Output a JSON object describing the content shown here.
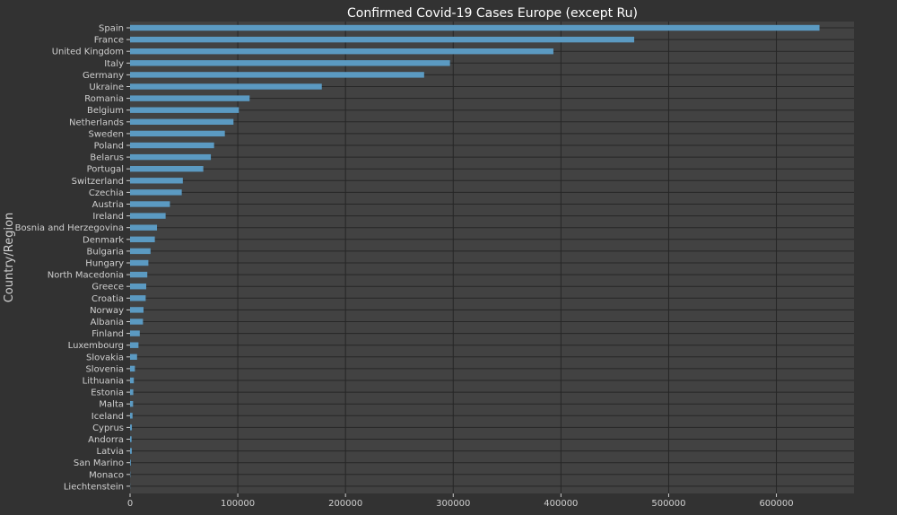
{
  "chart_data": {
    "type": "bar",
    "orientation": "horizontal",
    "title": "Confirmed Covid-19 Cases Europe (except Ru)",
    "xlabel": "",
    "ylabel": "Country/Region",
    "xlim": [
      0,
      672000
    ],
    "x_ticks": [
      "0",
      "100000",
      "200000",
      "300000",
      "400000",
      "500000",
      "600000"
    ],
    "x_tick_values": [
      0,
      100000,
      200000,
      300000,
      400000,
      500000,
      600000
    ],
    "grid": true,
    "categories": [
      "Spain",
      "France",
      "United Kingdom",
      "Italy",
      "Germany",
      "Ukraine",
      "Romania",
      "Belgium",
      "Netherlands",
      "Sweden",
      "Poland",
      "Belarus",
      "Portugal",
      "Switzerland",
      "Czechia",
      "Austria",
      "Ireland",
      "Bosnia and Herzegovina",
      "Denmark",
      "Bulgaria",
      "Hungary",
      "North Macedonia",
      "Greece",
      "Croatia",
      "Norway",
      "Albania",
      "Finland",
      "Luxembourg",
      "Slovakia",
      "Slovenia",
      "Lithuania",
      "Estonia",
      "Malta",
      "Iceland",
      "Cyprus",
      "Andorra",
      "Latvia",
      "San Marino",
      "Monaco",
      "Liechtenstein"
    ],
    "values": [
      640000,
      468000,
      393000,
      297000,
      273000,
      178000,
      111000,
      101000,
      96000,
      88000,
      78000,
      75000,
      68000,
      49000,
      48000,
      37000,
      33000,
      25000,
      23000,
      19000,
      17000,
      16000,
      15000,
      14500,
      12500,
      12000,
      9000,
      7800,
      6500,
      4500,
      3500,
      3000,
      2800,
      2300,
      1700,
      1400,
      1600,
      700,
      250,
      120
    ],
    "colors": {
      "bar": "#5b9ac2",
      "plot_background": "#424242",
      "page_background": "#323232",
      "grid": "#262626",
      "text": "#cfcfcf",
      "title": "#ffffff"
    }
  }
}
